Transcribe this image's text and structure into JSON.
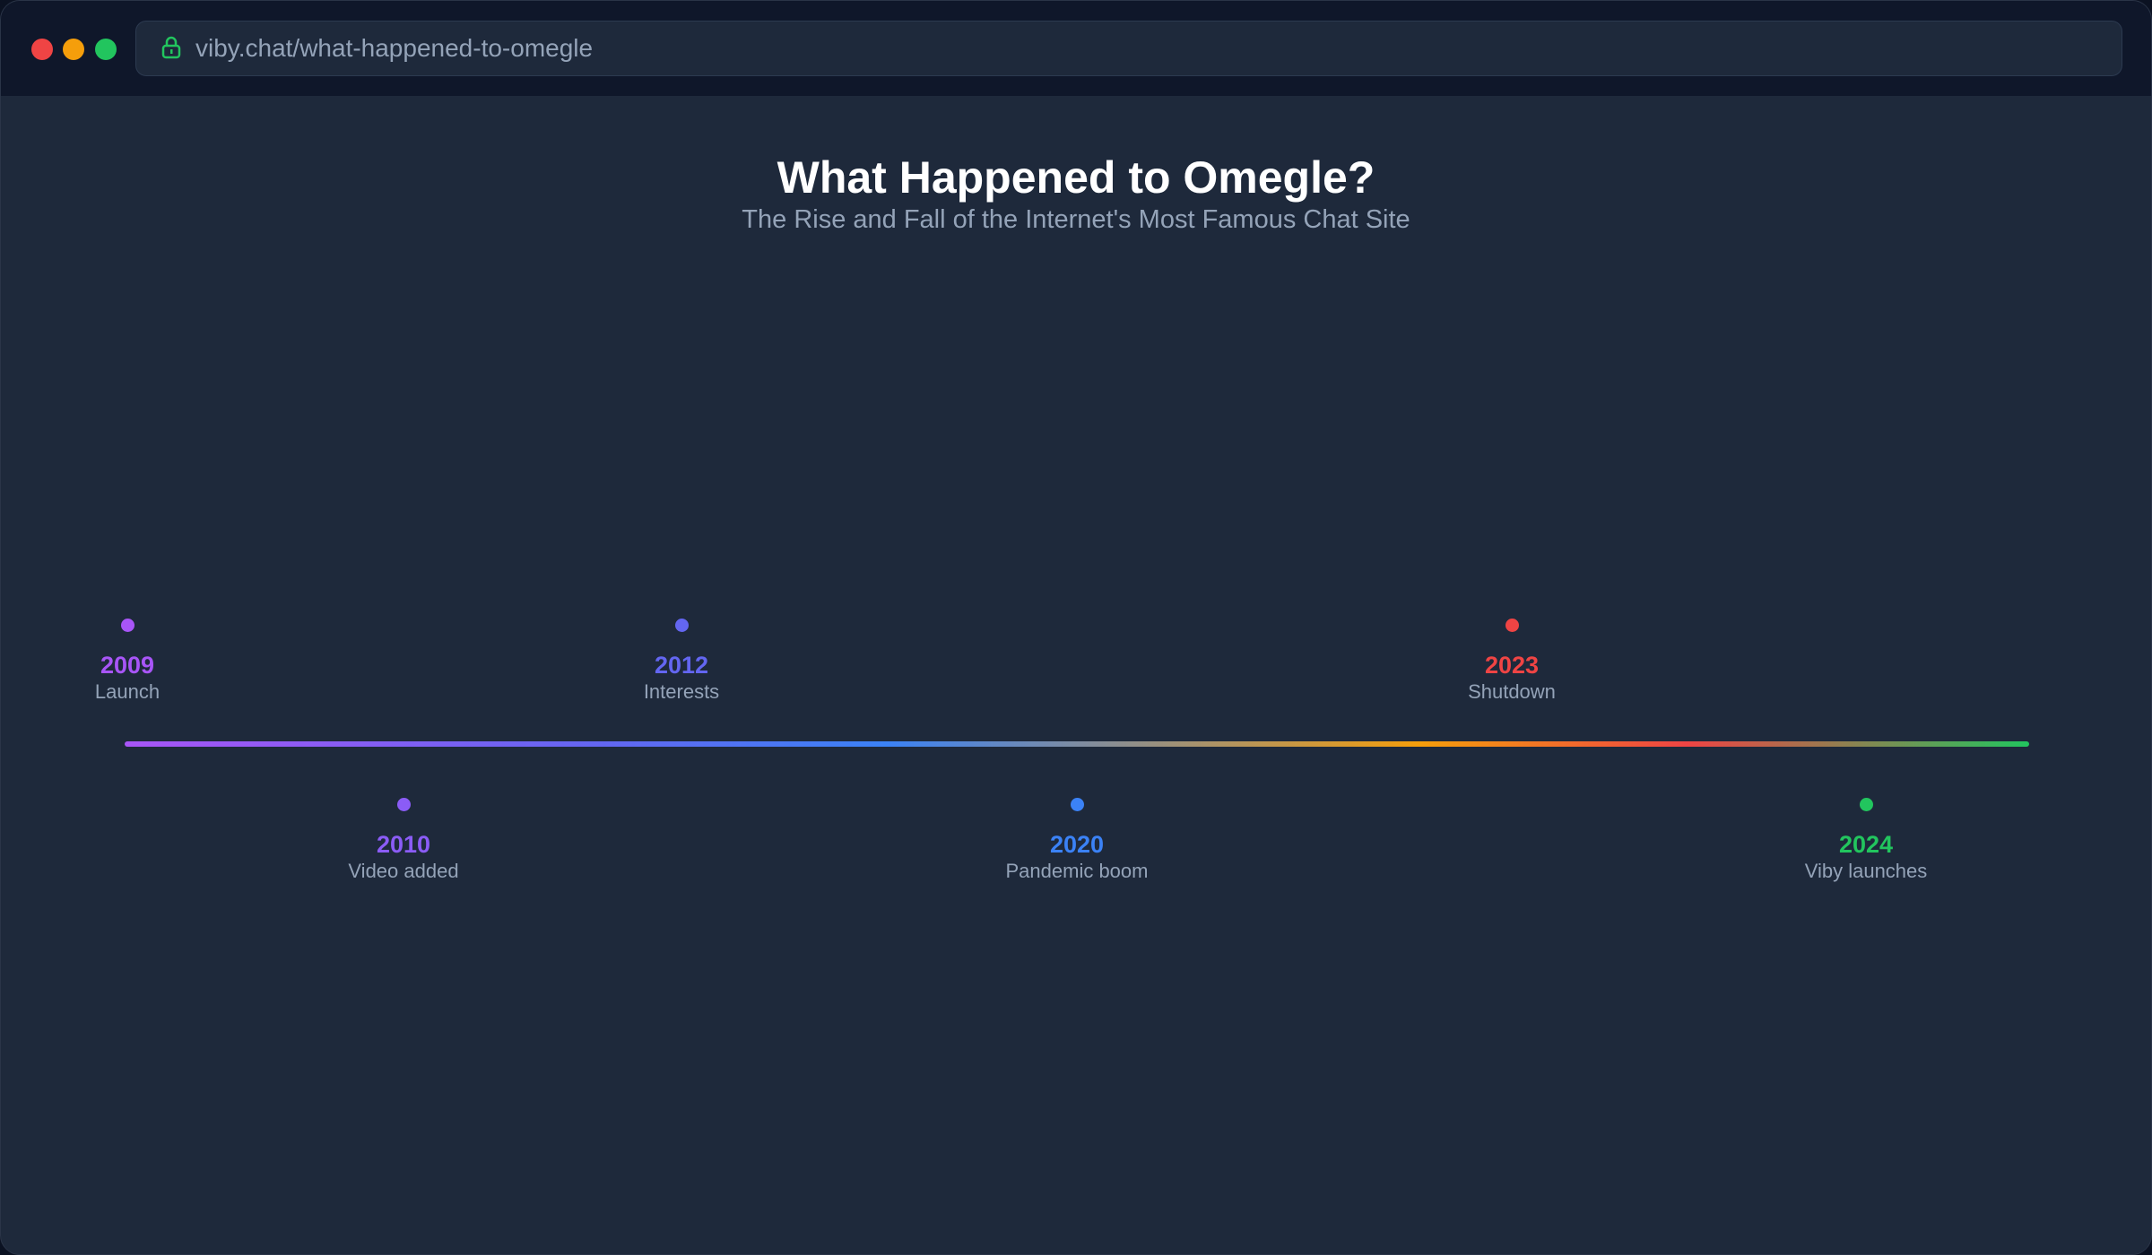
{
  "browser": {
    "url": "viby.chat/what-happened-to-omegle",
    "traffic_lights": {
      "close": "#ef4444",
      "minimize": "#f59e0b",
      "maximize": "#22c55e"
    },
    "lock_icon_color": "#22c55e"
  },
  "page": {
    "title": "What Happened to Omegle?",
    "subtitle": "The Rise and Fall of the Internet's Most Famous Chat Site"
  },
  "timeline": {
    "events": [
      {
        "year": "2009",
        "label": "Launch",
        "color": "#a855f7",
        "position": "above"
      },
      {
        "year": "2010",
        "label": "Video added",
        "color": "#8b5cf6",
        "position": "below"
      },
      {
        "year": "2012",
        "label": "Interests",
        "color": "#6366f1",
        "position": "above"
      },
      {
        "year": "2020",
        "label": "Pandemic boom",
        "color": "#3b82f6",
        "position": "below"
      },
      {
        "year": "2023",
        "label": "Shutdown",
        "color": "#ef4444",
        "position": "above"
      },
      {
        "year": "2024",
        "label": "Viby launches",
        "color": "#22c55e",
        "position": "below"
      }
    ]
  }
}
